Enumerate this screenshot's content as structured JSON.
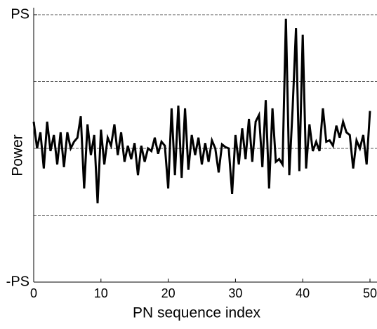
{
  "chart_data": {
    "type": "line",
    "xlabel": "PN sequence index",
    "ylabel": "Power",
    "xlim": [
      0,
      50
    ],
    "xticks": [
      0,
      10,
      20,
      30,
      40,
      50
    ],
    "ylim": [
      -1,
      1
    ],
    "yticks": [
      {
        "value": -1,
        "label": "-PS"
      },
      {
        "value": 1,
        "label": "PS"
      }
    ],
    "ygrid": [
      -0.5,
      0,
      0.5,
      1
    ],
    "series": [
      {
        "color": "#000000",
        "x": [
          0,
          0.5,
          1,
          1.5,
          2,
          2.5,
          3,
          3.5,
          4,
          4.5,
          5,
          5.5,
          6,
          6.5,
          7,
          7.5,
          8,
          8.5,
          9,
          9.5,
          10,
          10.5,
          11,
          11.5,
          12,
          12.5,
          13,
          13.5,
          14,
          14.5,
          15,
          15.5,
          16,
          16.5,
          17,
          17.5,
          18,
          18.5,
          19,
          19.5,
          20,
          20.5,
          21,
          21.5,
          22,
          22.5,
          23,
          23.5,
          24,
          24.5,
          25,
          25.5,
          26,
          26.5,
          27,
          27.5,
          28,
          28.5,
          29,
          29.5,
          30,
          30.5,
          31,
          31.5,
          32,
          32.5,
          33,
          33.5,
          34,
          34.5,
          35,
          35.5,
          36,
          36.5,
          37,
          37.5,
          38,
          38.5,
          39,
          39.5,
          40,
          40.5,
          41,
          41.5,
          42,
          42.5,
          43,
          43.5,
          44,
          44.5,
          45,
          45.5,
          46,
          46.5,
          47,
          47.5,
          48,
          48.5,
          49,
          49.5,
          50
        ],
        "values": [
          0.2,
          0,
          0.12,
          -0.15,
          0.2,
          -0.02,
          0.1,
          -0.12,
          0.12,
          -0.14,
          0.12,
          0,
          0.05,
          0.08,
          0.24,
          -0.3,
          0.18,
          -0.05,
          0.1,
          -0.41,
          0.14,
          -0.12,
          0.08,
          0.02,
          0.18,
          -0.05,
          0.12,
          -0.1,
          0.02,
          -0.08,
          0.04,
          -0.2,
          0.02,
          -0.1,
          0,
          -0.02,
          0.08,
          -0.04,
          0.05,
          0.02,
          -0.3,
          0.3,
          -0.2,
          0.32,
          -0.22,
          0.3,
          -0.16,
          0.1,
          -0.05,
          0.08,
          -0.12,
          0.04,
          -0.1,
          0.06,
          0,
          -0.18,
          0.03,
          0.01,
          0,
          -0.34,
          0.1,
          -0.12,
          0.15,
          -0.08,
          0.22,
          -0.1,
          0.2,
          0.25,
          -0.14,
          0.36,
          -0.3,
          0.3,
          -0.1,
          -0.08,
          -0.12,
          0.97,
          -0.2,
          0.3,
          0.9,
          -0.17,
          0.85,
          -0.15,
          0.18,
          -0.02,
          0.05,
          -0.02,
          0.3,
          0.05,
          0.06,
          0.02,
          0.17,
          0.08,
          0.2,
          0.12,
          0.1,
          -0.15,
          0.06,
          0,
          0.1,
          -0.12,
          0.28
        ]
      }
    ]
  }
}
